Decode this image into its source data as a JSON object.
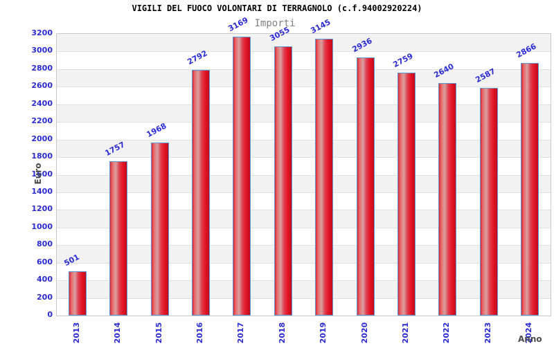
{
  "chart_data": {
    "type": "bar",
    "title": "VIGILI DEL FUOCO VOLONTARI DI TERRAGNOLO (c.f.94002920224)",
    "subtitle": "Importi",
    "categories": [
      "2013",
      "2014",
      "2015",
      "2016",
      "2017",
      "2018",
      "2019",
      "2020",
      "2021",
      "2022",
      "2023",
      "2024"
    ],
    "values": [
      501,
      1757,
      1968,
      2792,
      3169,
      3055,
      3145,
      2936,
      2759,
      2640,
      2587,
      2866
    ],
    "xlabel": "Anno",
    "ylabel": "Euro",
    "ylim": [
      0,
      3200
    ],
    "ytick_step": 200,
    "grid": true,
    "bands": "alternating horizontal white/gray stripes every 200",
    "legend_position": "none",
    "value_labels": "rotated above bars",
    "xtick_rotation": -90
  },
  "colors": {
    "label_blue": "#2b2bd5",
    "bar_border": "#5b9bd5",
    "bar_gradient": [
      [
        "0%",
        "#d92837"
      ],
      [
        "14%",
        "#ea6a6a"
      ],
      [
        "34%",
        "#d7a0a0"
      ],
      [
        "55%",
        "#e04050"
      ],
      [
        "75%",
        "#e51728"
      ],
      [
        "100%",
        "#c30a1a"
      ]
    ],
    "band_gray": "#f2f2f2",
    "gridline": "#e0e0e0",
    "plot_border": "#c8c8c8",
    "subtitle_gray": "#808080",
    "axis_label_gray": "#4a4a4a",
    "title_color": "#000000",
    "background": "#ffffff"
  }
}
